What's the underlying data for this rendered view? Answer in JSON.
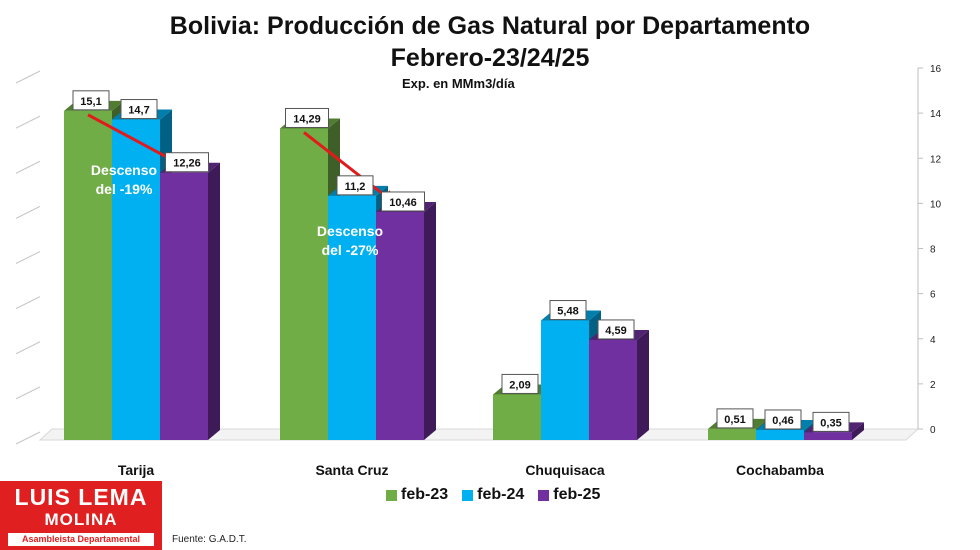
{
  "chart_data": {
    "type": "bar",
    "title": "Bolivia: Producción de Gas Natural por Departamento",
    "title_line2": "Febrero-23/24/25",
    "subtitle": "Exp. en MMm3/día",
    "categories": [
      "Tarija",
      "Santa Cruz",
      "Chuquisaca",
      "Cochabamba"
    ],
    "series": [
      {
        "name": "feb-23",
        "values": [
          15.1,
          14.29,
          2.09,
          0.51
        ],
        "labels": [
          "15,1",
          "14,29",
          "2,09",
          "0,51"
        ],
        "color": "#70ad47"
      },
      {
        "name": "feb-24",
        "values": [
          14.7,
          11.2,
          5.48,
          0.46
        ],
        "labels": [
          "14,7",
          "11,2",
          "5,48",
          "0,46"
        ],
        "color": "#00b0f0"
      },
      {
        "name": "feb-25",
        "values": [
          12.26,
          10.46,
          4.59,
          0.35
        ],
        "labels": [
          "12,26",
          "10,46",
          "4,59",
          "0,35"
        ],
        "color": "#7030a0"
      }
    ],
    "ylim": [
      0,
      16
    ],
    "yticks": [
      0,
      2,
      4,
      6,
      8,
      10,
      12,
      14,
      16
    ],
    "grid": false,
    "legend_position": "bottom",
    "annotations": [
      {
        "lines": [
          "Descenso",
          "del -19%"
        ],
        "category": "Tarija"
      },
      {
        "lines": [
          "Descenso",
          "del -27%"
        ],
        "category": "Santa Cruz"
      }
    ]
  },
  "branding": {
    "logo_line1": "LUIS LEMA",
    "logo_line2": "MOLINA",
    "logo_line3": "Asambleista Departamental",
    "logo_color": "#e02020"
  },
  "source": "Fuente: G.A.D.T."
}
